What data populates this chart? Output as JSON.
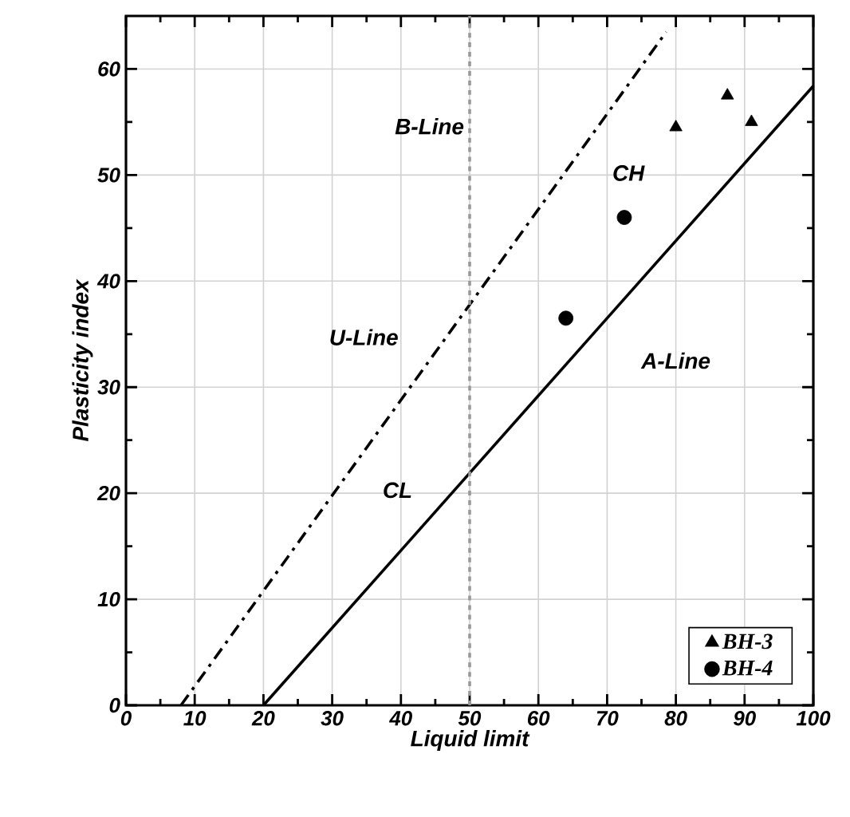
{
  "chart_data": {
    "type": "scatter",
    "xlabel": "Liquid limit",
    "ylabel": "Plasticity index",
    "xlim": [
      0,
      100
    ],
    "ylim": [
      0,
      65
    ],
    "xticks": [
      0,
      10,
      20,
      30,
      40,
      50,
      60,
      70,
      80,
      90,
      100
    ],
    "yticks": [
      0,
      10,
      20,
      30,
      40,
      50,
      60
    ],
    "grid": true,
    "legend": "bottom right",
    "series": [
      {
        "type": "line",
        "name": "U-Line",
        "x": [
          8,
          78.6
        ],
        "values": [
          0,
          63.5
        ],
        "color": "#000000",
        "line_style": "dashdot",
        "marker": "none"
      },
      {
        "type": "line",
        "name": "A-Line",
        "x": [
          20,
          100
        ],
        "values": [
          0,
          58.4
        ],
        "color": "#000000",
        "line_style": "solid",
        "marker": "none"
      },
      {
        "name": "BH-3",
        "x": [
          80,
          87.5,
          91
        ],
        "values": [
          54.5,
          57.5,
          55
        ],
        "color": "#000000",
        "marker": "triangle"
      },
      {
        "name": "BH-4",
        "x": [
          64,
          72.5
        ],
        "values": [
          36.5,
          46
        ],
        "color": "#000000",
        "marker": "circle"
      }
    ],
    "ref_lines": [
      {
        "axis": "x",
        "value": 50,
        "label": "B-Line",
        "color": "#999999",
        "line_style": "dashed"
      }
    ],
    "annotations": [
      "CL",
      "CH"
    ]
  }
}
